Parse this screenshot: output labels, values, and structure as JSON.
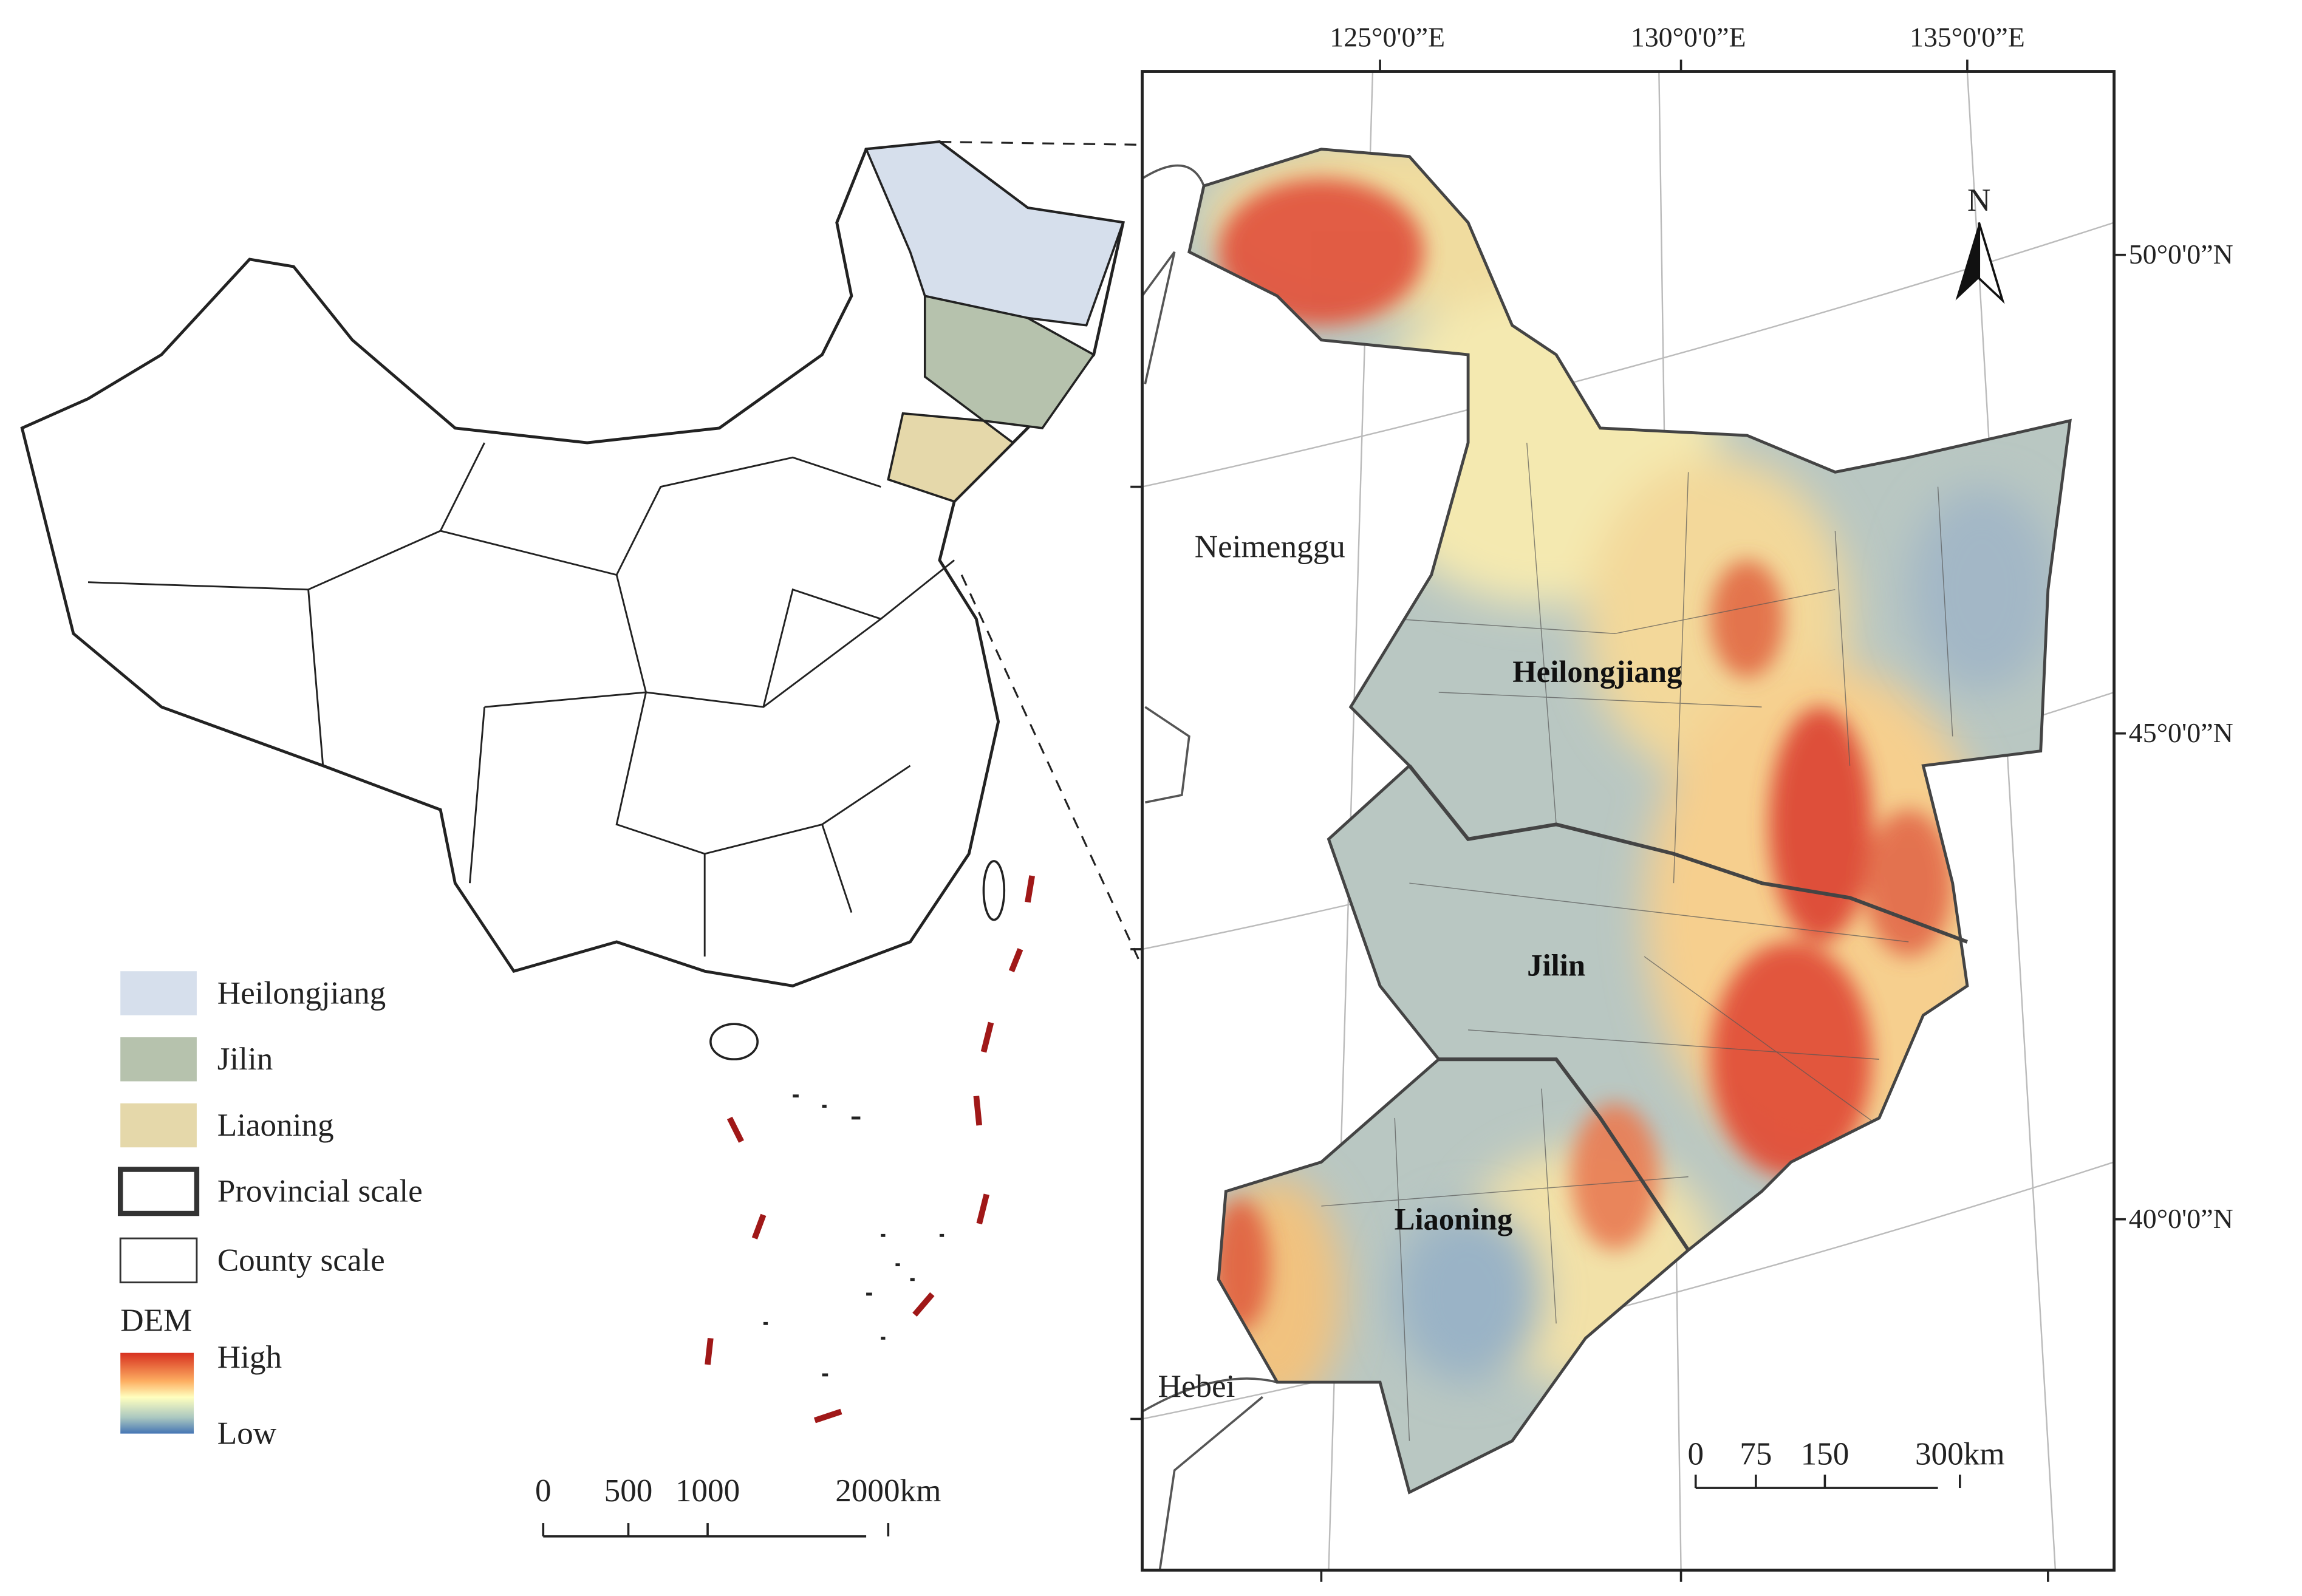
{
  "overview_map": {
    "legend": {
      "items": [
        {
          "label": "Heilongjiang",
          "color": "#d6dfec"
        },
        {
          "label": "Jilin",
          "color": "#b6c2ad"
        },
        {
          "label": "Liaoning",
          "color": "#e5d8aa"
        },
        {
          "label": "Provincial scale"
        },
        {
          "label": "County scale"
        }
      ],
      "dem": {
        "title": "DEM",
        "high": "High",
        "low": "Low"
      }
    },
    "scale_bar": {
      "labels": [
        "0",
        "500",
        "1000",
        "2000km"
      ]
    }
  },
  "detail_map": {
    "lon_labels": [
      "125°0'0”E",
      "130°0'0”E",
      "135°0'0”E"
    ],
    "lat_labels": [
      "50°0'0”N",
      "45°0'0”N",
      "40°0'0”N"
    ],
    "north": "N",
    "places": [
      "Neimenggu",
      "Hebei"
    ],
    "provinces": [
      "Heilongjiang",
      "Jilin",
      "Liaoning"
    ],
    "scale_bar": {
      "labels": [
        "0",
        "75",
        "150",
        "300km"
      ]
    }
  }
}
